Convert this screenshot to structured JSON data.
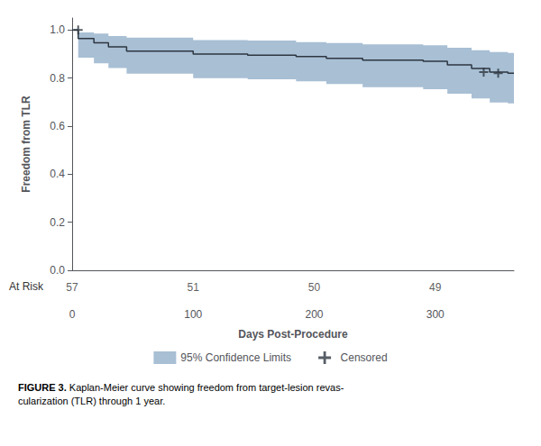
{
  "chart_data": {
    "type": "line",
    "ylabel": "Freedom from TLR",
    "xlabel": "Days Post-Procedure",
    "xlim": [
      0,
      365
    ],
    "xticks": [
      0,
      100,
      200,
      300
    ],
    "ylim": [
      0.0,
      1.05
    ],
    "yticks": [
      {
        "value": 0,
        "label": "0.0"
      },
      0.2,
      0.4,
      0.6,
      0.8,
      {
        "value": 1,
        "label": "1.0"
      }
    ],
    "grid": false,
    "legend": "bottom",
    "series": [
      {
        "type": "line",
        "line_style": "step",
        "color": "#2d3640",
        "x": [
          0,
          5,
          18,
          30,
          45,
          60,
          80,
          100,
          120,
          145,
          160,
          185,
          210,
          240,
          270,
          290,
          310,
          330,
          345,
          360,
          365
        ],
        "values": [
          1.0,
          0.965,
          0.947,
          0.93,
          0.912,
          0.912,
          0.912,
          0.9,
          0.9,
          0.895,
          0.895,
          0.89,
          0.882,
          0.875,
          0.875,
          0.87,
          0.855,
          0.84,
          0.825,
          0.82,
          0.82
        ]
      },
      {
        "name": "95% Confidence Limits",
        "type": "band",
        "line_style": "step",
        "color": "#a8bfd4",
        "x": [
          0,
          5,
          18,
          30,
          45,
          60,
          80,
          100,
          120,
          145,
          160,
          185,
          210,
          240,
          270,
          290,
          310,
          330,
          345,
          360,
          365
        ],
        "lower": [
          1.0,
          0.885,
          0.862,
          0.842,
          0.818,
          0.818,
          0.818,
          0.8,
          0.8,
          0.795,
          0.795,
          0.787,
          0.775,
          0.762,
          0.762,
          0.754,
          0.735,
          0.715,
          0.698,
          0.695,
          0.695
        ],
        "upper": [
          1.0,
          0.99,
          0.985,
          0.975,
          0.968,
          0.968,
          0.968,
          0.958,
          0.958,
          0.956,
          0.956,
          0.95,
          0.946,
          0.94,
          0.94,
          0.937,
          0.926,
          0.916,
          0.908,
          0.905,
          0.905
        ]
      },
      {
        "name": "Censored",
        "type": "scatter",
        "marker": "plus",
        "color": "#2d3640",
        "x": [
          5,
          340,
          352
        ],
        "values": [
          1.0,
          0.825,
          0.82
        ]
      }
    ],
    "at_risk": {
      "label": "At Risk",
      "x": [
        0,
        100,
        200,
        300
      ],
      "values": [
        57,
        51,
        50,
        49
      ]
    },
    "caption": {
      "bold": "FIGURE 3.",
      "text": " Kaplan-Meier curve showing freedom from target-lesion revas-\ncularization (TLR) through 1 year."
    }
  }
}
